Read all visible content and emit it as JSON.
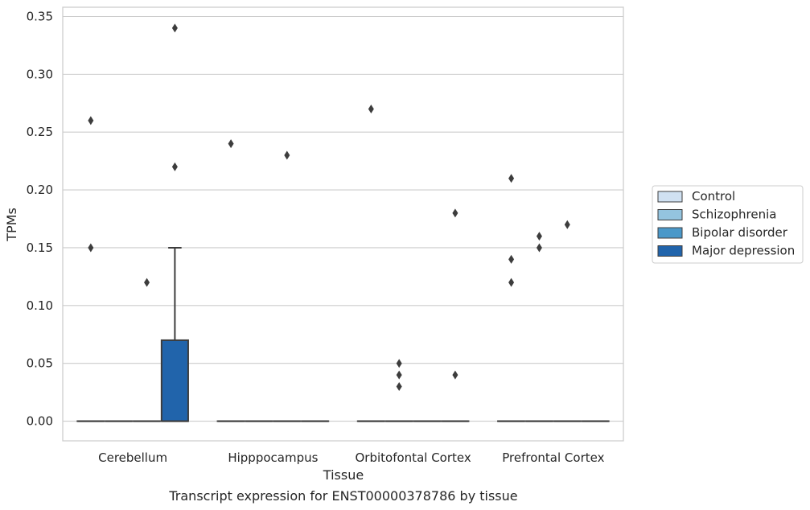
{
  "chart_data": {
    "type": "box",
    "title": "",
    "caption": "Transcript expression for ENST00000378786 by tissue",
    "xlabel": "Tissue",
    "ylabel": "TPMs",
    "ylim": [
      -0.017,
      0.358
    ],
    "yticks": [
      0.0,
      0.05,
      0.1,
      0.15,
      0.2,
      0.25,
      0.3,
      0.35
    ],
    "ytick_labels": [
      "0.00",
      "0.05",
      "0.10",
      "0.15",
      "0.20",
      "0.25",
      "0.30",
      "0.35"
    ],
    "grid": "horizontal",
    "legend_position": "outside-right",
    "categories": [
      "Cerebellum",
      "Hipppocampus",
      "Orbitofontal Cortex",
      "Prefrontal Cortex"
    ],
    "series": [
      {
        "name": "Control",
        "color": "#d0e1f2",
        "boxes": [
          {
            "q1": 0,
            "median": 0,
            "q3": 0,
            "whisker_low": 0,
            "whisker_high": 0,
            "outliers": [
              0.26,
              0.15
            ]
          },
          {
            "q1": 0,
            "median": 0,
            "q3": 0,
            "whisker_low": 0,
            "whisker_high": 0,
            "outliers": [
              0.24
            ]
          },
          {
            "q1": 0,
            "median": 0,
            "q3": 0,
            "whisker_low": 0,
            "whisker_high": 0,
            "outliers": [
              0.27
            ]
          },
          {
            "q1": 0,
            "median": 0,
            "q3": 0,
            "whisker_low": 0,
            "whisker_high": 0,
            "outliers": [
              0.21,
              0.14,
              0.12
            ]
          }
        ]
      },
      {
        "name": "Schizophrenia",
        "color": "#94c4df",
        "boxes": [
          {
            "q1": 0,
            "median": 0,
            "q3": 0,
            "whisker_low": 0,
            "whisker_high": 0,
            "outliers": []
          },
          {
            "q1": 0,
            "median": 0,
            "q3": 0,
            "whisker_low": 0,
            "whisker_high": 0,
            "outliers": []
          },
          {
            "q1": 0,
            "median": 0,
            "q3": 0,
            "whisker_low": 0,
            "whisker_high": 0,
            "outliers": [
              0.05,
              0.04,
              0.03
            ]
          },
          {
            "q1": 0,
            "median": 0,
            "q3": 0,
            "whisker_low": 0,
            "whisker_high": 0,
            "outliers": [
              0.16,
              0.15
            ]
          }
        ]
      },
      {
        "name": "Bipolar disorder",
        "color": "#4a98c9",
        "boxes": [
          {
            "q1": 0,
            "median": 0,
            "q3": 0,
            "whisker_low": 0,
            "whisker_high": 0,
            "outliers": [
              0.12
            ]
          },
          {
            "q1": 0,
            "median": 0,
            "q3": 0,
            "whisker_low": 0,
            "whisker_high": 0,
            "outliers": [
              0.23
            ]
          },
          {
            "q1": 0,
            "median": 0,
            "q3": 0,
            "whisker_low": 0,
            "whisker_high": 0,
            "outliers": []
          },
          {
            "q1": 0,
            "median": 0,
            "q3": 0,
            "whisker_low": 0,
            "whisker_high": 0,
            "outliers": [
              0.17
            ]
          }
        ]
      },
      {
        "name": "Major depression",
        "color": "#2164ab",
        "boxes": [
          {
            "q1": 0,
            "median": 0,
            "q3": 0.07,
            "whisker_low": 0,
            "whisker_high": 0.15,
            "outliers": [
              0.34,
              0.22
            ]
          },
          {
            "q1": 0,
            "median": 0,
            "q3": 0,
            "whisker_low": 0,
            "whisker_high": 0,
            "outliers": []
          },
          {
            "q1": 0,
            "median": 0,
            "q3": 0,
            "whisker_low": 0,
            "whisker_high": 0,
            "outliers": [
              0.18,
              0.04
            ]
          },
          {
            "q1": 0,
            "median": 0,
            "q3": 0,
            "whisker_low": 0,
            "whisker_high": 0,
            "outliers": []
          }
        ]
      }
    ]
  }
}
